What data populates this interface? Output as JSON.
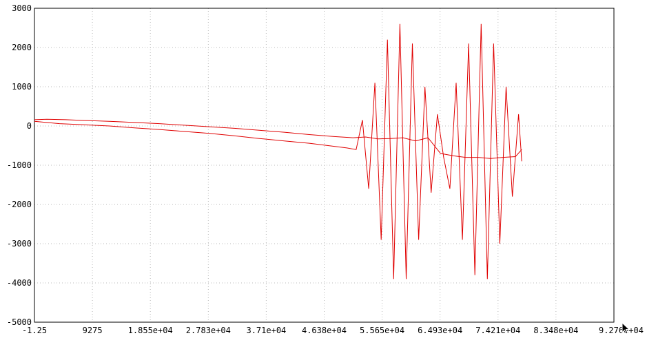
{
  "chart_data": {
    "type": "line",
    "title": "",
    "xlabel": "",
    "ylabel": "",
    "xlim": [
      -1.25,
      92760
    ],
    "ylim": [
      -5000,
      3000
    ],
    "grid": true,
    "legend": "none",
    "x_ticks": [
      {
        "value": -1.25,
        "label": "-1.25"
      },
      {
        "value": 9275,
        "label": "9275"
      },
      {
        "value": 18550,
        "label": "1.855e+04"
      },
      {
        "value": 27830,
        "label": "2.783e+04"
      },
      {
        "value": 37100,
        "label": "3.71e+04"
      },
      {
        "value": 46380,
        "label": "4.638e+04"
      },
      {
        "value": 55650,
        "label": "5.565e+04"
      },
      {
        "value": 64930,
        "label": "6.493e+04"
      },
      {
        "value": 74210,
        "label": "7.421e+04"
      },
      {
        "value": 83480,
        "label": "8.348e+04"
      },
      {
        "value": 92760,
        "label": "9.276e+04"
      }
    ],
    "y_ticks": [
      {
        "value": 3000,
        "label": "3000"
      },
      {
        "value": 2000,
        "label": "2000"
      },
      {
        "value": 1000,
        "label": "1000"
      },
      {
        "value": 0,
        "label": "0"
      },
      {
        "value": -1000,
        "label": "-1000"
      },
      {
        "value": -2000,
        "label": "-2000"
      },
      {
        "value": -3000,
        "label": "-3000"
      },
      {
        "value": -4000,
        "label": "-4000"
      },
      {
        "value": -5000,
        "label": "-5000"
      }
    ],
    "series_color": "#e00000",
    "series": [
      {
        "x": [
          0,
          2000,
          5000,
          8000,
          12000,
          16000,
          20000,
          24000,
          28000,
          32000,
          36000,
          40000,
          44000,
          48000,
          51000,
          53000,
          55000,
          57000,
          59000,
          61000,
          63000,
          65000,
          67000,
          69000,
          71000,
          73000,
          75000,
          77000,
          78000
        ],
        "y": [
          160,
          170,
          160,
          140,
          120,
          90,
          60,
          20,
          -20,
          -60,
          -110,
          -160,
          -220,
          -270,
          -300,
          -280,
          -330,
          -320,
          -300,
          -380,
          -300,
          -700,
          -760,
          -800,
          -800,
          -830,
          -800,
          -780,
          -600
        ]
      },
      {
        "x": [
          0,
          4000,
          8000,
          12000,
          16000,
          20000,
          24000,
          28000,
          32000,
          36000,
          40000,
          44000,
          48000,
          50000,
          51500,
          52500,
          53500,
          54500,
          55500,
          56500,
          57500,
          58500,
          59500,
          60500,
          61500,
          62500,
          63500,
          64500,
          65500,
          66500,
          67500,
          68500,
          69500,
          70500,
          71500,
          72500,
          73500,
          74500,
          75500,
          76500,
          77500,
          78000
        ],
        "y": [
          120,
          60,
          30,
          0,
          -50,
          -90,
          -140,
          -190,
          -250,
          -320,
          -380,
          -440,
          -520,
          -560,
          -600,
          150,
          -1600,
          1100,
          -2900,
          2200,
          -3900,
          2600,
          -3900,
          2100,
          -2900,
          1000,
          -1700,
          300,
          -800,
          -1600,
          1100,
          -2900,
          2100,
          -3800,
          2600,
          -3900,
          2100,
          -3000,
          1000,
          -1800,
          300,
          -900
        ]
      }
    ]
  }
}
